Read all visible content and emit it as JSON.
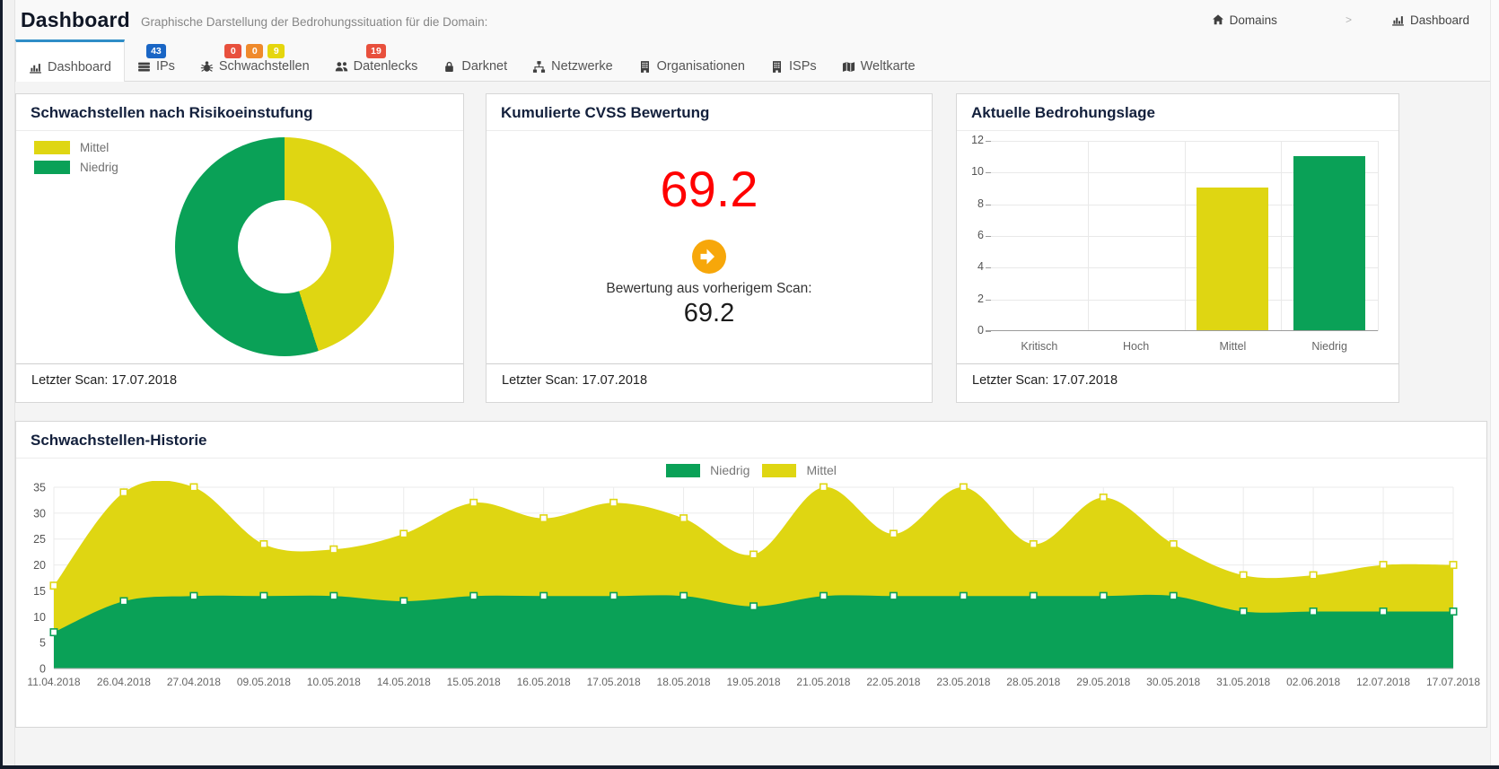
{
  "header": {
    "title": "Dashboard",
    "subtitle": "Graphische Darstellung der Bedrohungssituation für die Domain:"
  },
  "breadcrumb": {
    "separator": ">",
    "items": [
      {
        "icon": "home-icon",
        "label": "Domains"
      },
      {
        "icon": "bar-chart-icon",
        "label": "Dashboard"
      }
    ]
  },
  "tabs": [
    {
      "id": "dashboard",
      "label": "Dashboard",
      "icon": "bar-chart-icon",
      "active": true,
      "badges": []
    },
    {
      "id": "ips",
      "label": "IPs",
      "icon": "server-icon",
      "active": false,
      "badges": [
        {
          "text": "43",
          "color": "#1a66c5"
        }
      ]
    },
    {
      "id": "schwachstellen",
      "label": "Schwachstellen",
      "icon": "bug-icon",
      "active": false,
      "badges": [
        {
          "text": "0",
          "color": "#e8503d"
        },
        {
          "text": "0",
          "color": "#ef8a2c"
        },
        {
          "text": "9",
          "color": "#e5d60d"
        }
      ]
    },
    {
      "id": "datenlecks",
      "label": "Datenlecks",
      "icon": "users-icon",
      "active": false,
      "badges": [
        {
          "text": "19",
          "color": "#e8503d"
        }
      ]
    },
    {
      "id": "darknet",
      "label": "Darknet",
      "icon": "lock-icon",
      "active": false,
      "badges": []
    },
    {
      "id": "netzwerke",
      "label": "Netzwerke",
      "icon": "sitemap-icon",
      "active": false,
      "badges": []
    },
    {
      "id": "organisationen",
      "label": "Organisationen",
      "icon": "building-icon",
      "active": false,
      "badges": []
    },
    {
      "id": "isps",
      "label": "ISPs",
      "icon": "building-icon",
      "active": false,
      "badges": []
    },
    {
      "id": "weltkarte",
      "label": "Weltkarte",
      "icon": "map-icon",
      "active": false,
      "badges": []
    }
  ],
  "cards": {
    "risiko": {
      "title": "Schwachstellen nach Risikoeinstufung",
      "last_scan": "Letzter Scan: 17.07.2018"
    },
    "cvss": {
      "title": "Kumulierte CVSS Bewertung",
      "score": "69.2",
      "previous_label": "Bewertung aus vorherigem Scan:",
      "previous_score": "69.2",
      "last_scan": "Letzter Scan: 17.07.2018"
    },
    "bedrohung": {
      "title": "Aktuelle Bedrohungslage",
      "last_scan": "Letzter Scan: 17.07.2018"
    },
    "historie": {
      "title": "Schwachstellen-Historie"
    }
  },
  "colors": {
    "yellow": "#dfd612",
    "green": "#0aa157",
    "score_red": "#ff0000",
    "arrow_orange": "#f7a70a",
    "tab_active_border": "#2f8dc7"
  },
  "chart_data": [
    {
      "id": "risiko-donut",
      "type": "pie",
      "subtype": "donut",
      "labels": [
        "Mittel",
        "Niedrig"
      ],
      "values": [
        9,
        11
      ],
      "colors": [
        "#dfd612",
        "#0aa157"
      ],
      "start_angle": "top",
      "direction": "clockwise",
      "inner_radius_ratio": 0.42,
      "legend_position": "top-left"
    },
    {
      "id": "bedrohungslage-bar",
      "type": "bar",
      "categories": [
        "Kritisch",
        "Hoch",
        "Mittel",
        "Niedrig"
      ],
      "values": [
        0,
        0,
        9,
        11
      ],
      "bar_colors": [
        "#dfd612",
        "#dfd612",
        "#dfd612",
        "#0aa157"
      ],
      "ylim": [
        0,
        12
      ],
      "ytick_step": 2,
      "grid": true
    },
    {
      "id": "historie-area",
      "type": "area",
      "subtype": "stacked-smooth",
      "x": [
        "11.04.2018",
        "26.04.2018",
        "27.04.2018",
        "09.05.2018",
        "10.05.2018",
        "14.05.2018",
        "15.05.2018",
        "16.05.2018",
        "17.05.2018",
        "18.05.2018",
        "19.05.2018",
        "21.05.2018",
        "22.05.2018",
        "23.05.2018",
        "28.05.2018",
        "29.05.2018",
        "30.05.2018",
        "31.05.2018",
        "02.06.2018",
        "12.07.2018",
        "17.07.2018"
      ],
      "series": [
        {
          "name": "Niedrig",
          "color": "#0aa157",
          "values": [
            7,
            13,
            14,
            14,
            14,
            13,
            14,
            14,
            14,
            14,
            12,
            14,
            14,
            14,
            14,
            14,
            14,
            11,
            11,
            11,
            11
          ]
        },
        {
          "name": "Mittel",
          "color": "#dfd612",
          "values": [
            9,
            21,
            21,
            10,
            9,
            13,
            18,
            15,
            18,
            15,
            10,
            21,
            12,
            21,
            10,
            19,
            10,
            7,
            7,
            9,
            9
          ]
        }
      ],
      "stacked_totals": [
        16,
        34,
        35,
        24,
        23,
        26,
        32,
        29,
        32,
        29,
        22,
        35,
        26,
        35,
        24,
        33,
        24,
        18,
        18,
        20,
        20
      ],
      "ylim": [
        0,
        35
      ],
      "ytick_step": 5,
      "legend_position": "top-center",
      "markers": "white-square",
      "grid": true
    }
  ]
}
